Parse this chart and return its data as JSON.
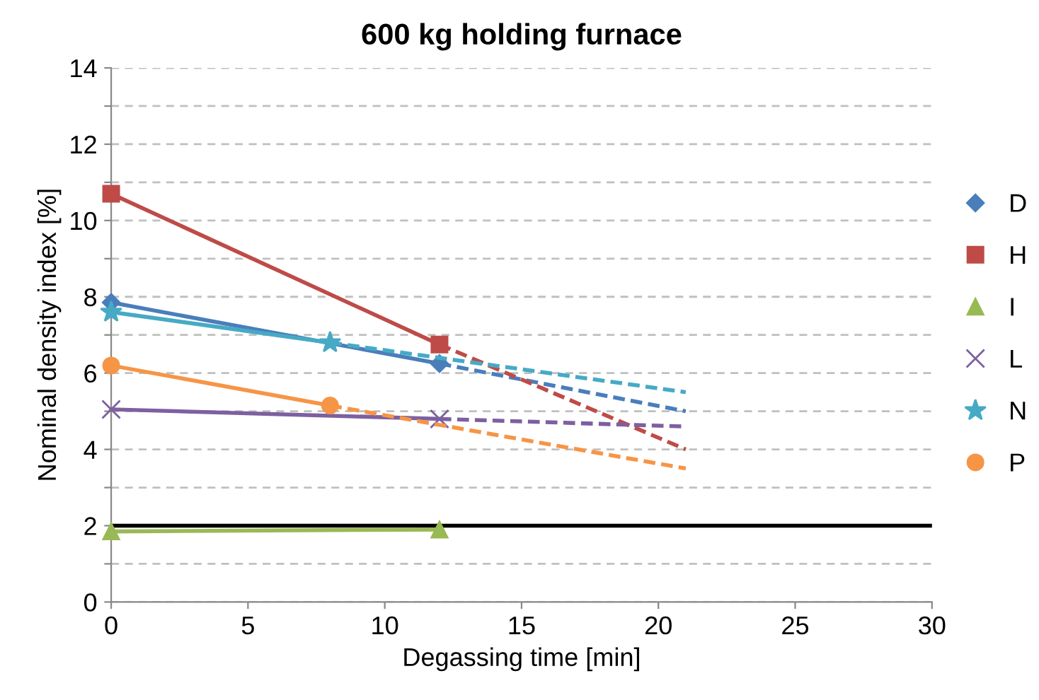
{
  "chart_data": {
    "type": "line",
    "title": "600 kg holding furnace",
    "xlabel": "Degassing time [min]",
    "ylabel": "Nominal density index [%]",
    "xlim": [
      0,
      30
    ],
    "xticks": [
      0,
      5,
      10,
      15,
      20,
      25,
      30
    ],
    "ylim": [
      0,
      14
    ],
    "yticks": [
      0,
      {
        "value": 1,
        "label": null
      },
      2,
      {
        "value": 3,
        "label": null
      },
      4,
      {
        "value": 5,
        "label": null
      },
      6,
      {
        "value": 7,
        "label": null
      },
      8,
      {
        "value": 9,
        "label": null
      },
      10,
      {
        "value": 11,
        "label": null
      },
      12,
      {
        "value": 13,
        "label": null
      },
      14
    ],
    "grid": "y",
    "legend": "right",
    "line_style": "solid",
    "series": [
      {
        "name": "D",
        "color": "#4a7ebb",
        "marker": "diamond",
        "x": [
          0,
          12
        ],
        "values": [
          7.85,
          6.25
        ]
      },
      {
        "name": "H",
        "color": "#be4b48",
        "marker": "square",
        "x": [
          0,
          12
        ],
        "values": [
          10.7,
          6.75
        ]
      },
      {
        "name": "I",
        "color": "#98b954",
        "marker": "triangle",
        "x": [
          0,
          12
        ],
        "values": [
          1.85,
          1.9
        ]
      },
      {
        "name": "L",
        "color": "#7d60a0",
        "marker": "cross",
        "x": [
          0,
          12
        ],
        "values": [
          5.05,
          4.8
        ]
      },
      {
        "name": "N",
        "color": "#46aac5",
        "marker": "star",
        "x": [
          0,
          8
        ],
        "values": [
          7.6,
          6.8
        ]
      },
      {
        "name": "P",
        "color": "#f69546",
        "marker": "circle",
        "x": [
          0,
          8
        ],
        "values": [
          6.2,
          5.15
        ]
      },
      {
        "color": "#4a7ebb",
        "line_style": "dashed",
        "marker": "none",
        "x": [
          12,
          21
        ],
        "values": [
          6.25,
          5.0
        ]
      },
      {
        "color": "#be4b48",
        "line_style": "dashed",
        "marker": "none",
        "x": [
          12,
          21
        ],
        "values": [
          6.75,
          4.0
        ]
      },
      {
        "color": "#7d60a0",
        "line_style": "dashed",
        "marker": "none",
        "x": [
          12,
          21
        ],
        "values": [
          4.8,
          4.6
        ]
      },
      {
        "color": "#46aac5",
        "line_style": "dashed",
        "marker": "none",
        "x": [
          8,
          21
        ],
        "values": [
          6.8,
          5.5
        ]
      },
      {
        "color": "#f69546",
        "line_style": "dashed",
        "marker": "none",
        "x": [
          8,
          21
        ],
        "values": [
          5.15,
          3.5
        ]
      }
    ],
    "ref_lines": [
      {
        "axis": "y",
        "value": 2,
        "color": "#000000",
        "line_style": "solid"
      }
    ]
  }
}
